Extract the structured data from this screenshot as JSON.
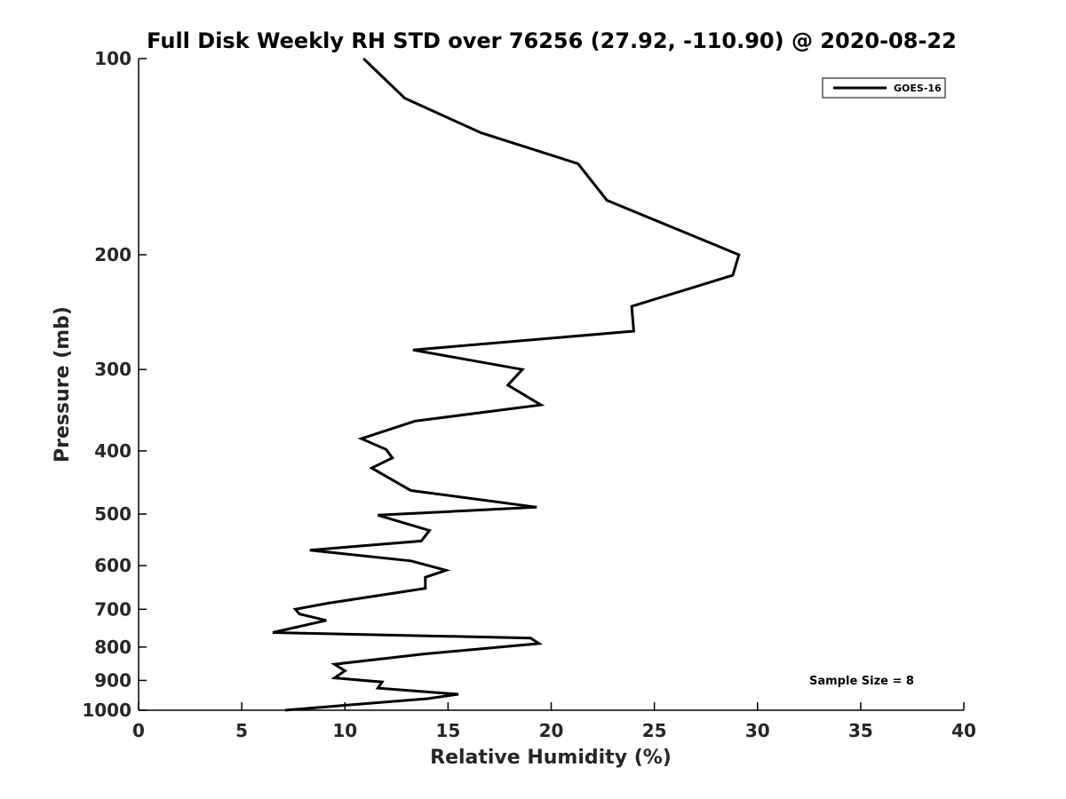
{
  "chart_data": {
    "type": "line",
    "title": "Full Disk Weekly RH STD over 76256 (27.92, -110.90) @ 2020-08-22",
    "xlabel": "Relative Humidity (%)",
    "ylabel": "Pressure (mb)",
    "xlim": [
      0,
      40
    ],
    "ylim": [
      1000,
      100
    ],
    "yscale": "log",
    "y_reversed": true,
    "grid": false,
    "legend_position": "top-right",
    "xticks": [
      0,
      5,
      10,
      15,
      20,
      25,
      30,
      35,
      40
    ],
    "yticks": [
      100,
      200,
      300,
      400,
      500,
      600,
      700,
      800,
      900,
      1000
    ],
    "annotation": "Sample Size = 8",
    "series": [
      {
        "name": "GOES-16",
        "color": "#000000",
        "x": [
          10.9,
          12.9,
          16.6,
          21.3,
          22.7,
          29.1,
          28.8,
          23.9,
          23.9,
          24.0,
          13.3,
          18.6,
          17.9,
          19.5,
          13.4,
          10.8,
          12.0,
          12.3,
          11.3,
          13.2,
          19.3,
          11.6,
          14.1,
          13.7,
          8.3,
          13.2,
          14.9,
          13.9,
          13.9,
          9.2,
          7.6,
          7.8,
          9.1,
          6.5,
          19.0,
          19.4,
          13.8,
          9.5,
          10.0,
          9.5,
          11.8,
          11.6,
          15.5,
          14.0,
          9.6,
          7.1
        ],
        "y": [
          100,
          115,
          130,
          145,
          165,
          200,
          215,
          240,
          240,
          262,
          280,
          300,
          317,
          340,
          360,
          383,
          398,
          410,
          425,
          460,
          488,
          502,
          530,
          550,
          568,
          590,
          610,
          625,
          650,
          685,
          700,
          712,
          728,
          760,
          775,
          790,
          820,
          850,
          870,
          892,
          905,
          925,
          945,
          960,
          985,
          1000
        ]
      }
    ]
  }
}
